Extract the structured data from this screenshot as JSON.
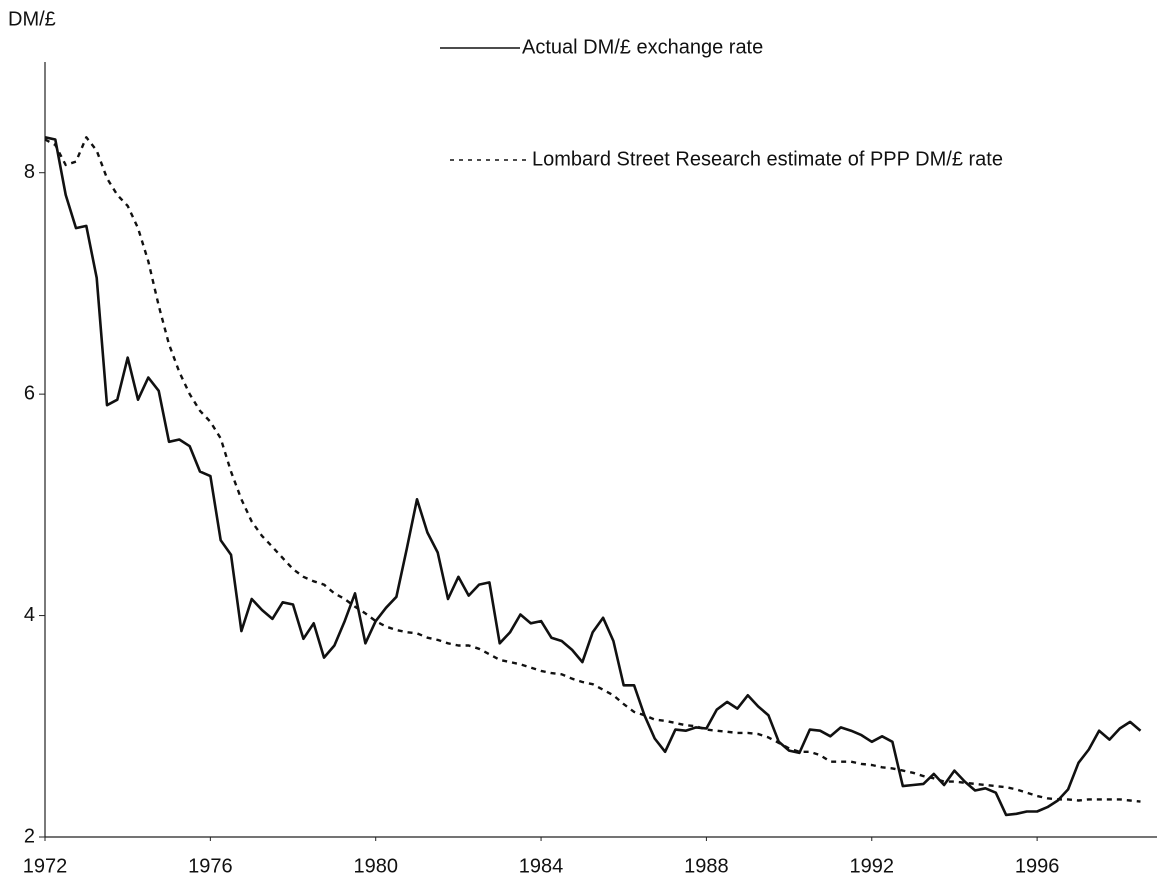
{
  "chart_data": {
    "type": "line",
    "y_label": "DM/£",
    "x": [
      1972,
      1972.25,
      1972.5,
      1972.75,
      1973,
      1973.25,
      1973.5,
      1973.75,
      1974,
      1974.25,
      1974.5,
      1974.75,
      1975,
      1975.25,
      1975.5,
      1975.75,
      1976,
      1976.25,
      1976.5,
      1976.75,
      1977,
      1977.25,
      1977.5,
      1977.75,
      1978,
      1978.25,
      1978.5,
      1978.75,
      1979,
      1979.25,
      1979.5,
      1979.75,
      1980,
      1980.25,
      1980.5,
      1980.75,
      1981,
      1981.25,
      1981.5,
      1981.75,
      1982,
      1982.25,
      1982.5,
      1982.75,
      1983,
      1983.25,
      1983.5,
      1983.75,
      1984,
      1984.25,
      1984.5,
      1984.75,
      1985,
      1985.25,
      1985.5,
      1985.75,
      1986,
      1986.25,
      1986.5,
      1986.75,
      1987,
      1987.25,
      1987.5,
      1987.75,
      1988,
      1988.25,
      1988.5,
      1988.75,
      1989,
      1989.25,
      1989.5,
      1989.75,
      1990,
      1990.25,
      1990.5,
      1990.75,
      1991,
      1991.25,
      1991.5,
      1991.75,
      1992,
      1992.25,
      1992.5,
      1992.75,
      1993,
      1993.25,
      1993.5,
      1993.75,
      1994,
      1994.25,
      1994.5,
      1994.75,
      1995,
      1995.25,
      1995.5,
      1995.75,
      1996,
      1996.25,
      1996.5,
      1996.75,
      1997,
      1997.25,
      1997.5,
      1997.75,
      1998,
      1998.25,
      1998.5
    ],
    "series": [
      {
        "name": "Actual DM/£ exchange rate",
        "color": "#111111",
        "linestyle": "solid",
        "values": [
          8.32,
          8.3,
          7.8,
          7.5,
          7.52,
          7.05,
          5.9,
          5.95,
          6.33,
          5.95,
          6.15,
          6.03,
          5.57,
          5.59,
          5.53,
          5.3,
          5.26,
          4.68,
          4.55,
          3.86,
          4.15,
          4.05,
          3.97,
          4.12,
          4.1,
          3.79,
          3.93,
          3.62,
          3.73,
          3.95,
          4.2,
          3.75,
          3.95,
          4.07,
          4.17,
          4.6,
          5.05,
          4.75,
          4.57,
          4.15,
          4.35,
          4.18,
          4.28,
          4.3,
          3.75,
          3.85,
          4.01,
          3.93,
          3.95,
          3.8,
          3.77,
          3.69,
          3.58,
          3.85,
          3.98,
          3.77,
          3.37,
          3.37,
          3.1,
          2.89,
          2.77,
          2.97,
          2.96,
          2.99,
          2.98,
          3.15,
          3.22,
          3.16,
          3.28,
          3.18,
          3.1,
          2.86,
          2.78,
          2.76,
          2.97,
          2.96,
          2.91,
          2.99,
          2.96,
          2.92,
          2.86,
          2.91,
          2.86,
          2.46,
          2.47,
          2.48,
          2.57,
          2.47,
          2.6,
          2.5,
          2.42,
          2.44,
          2.4,
          2.2,
          2.21,
          2.23,
          2.23,
          2.27,
          2.33,
          2.43,
          2.67,
          2.79,
          2.96,
          2.88,
          2.98,
          3.04,
          2.96
        ]
      },
      {
        "name": "Lombard Street Research estimate of PPP DM/£ rate",
        "color": "#111111",
        "linestyle": "dotted",
        "values": [
          8.3,
          8.25,
          8.07,
          8.1,
          8.32,
          8.2,
          7.95,
          7.8,
          7.7,
          7.5,
          7.2,
          6.8,
          6.45,
          6.2,
          6.0,
          5.85,
          5.75,
          5.6,
          5.3,
          5.05,
          4.85,
          4.72,
          4.62,
          4.52,
          4.42,
          4.35,
          4.31,
          4.28,
          4.2,
          4.15,
          4.08,
          4.02,
          3.95,
          3.9,
          3.87,
          3.85,
          3.84,
          3.8,
          3.78,
          3.75,
          3.73,
          3.73,
          3.7,
          3.65,
          3.6,
          3.58,
          3.56,
          3.53,
          3.5,
          3.48,
          3.47,
          3.43,
          3.4,
          3.38,
          3.33,
          3.28,
          3.2,
          3.13,
          3.1,
          3.06,
          3.05,
          3.03,
          3.01,
          3.0,
          2.97,
          2.96,
          2.95,
          2.94,
          2.94,
          2.93,
          2.9,
          2.85,
          2.8,
          2.77,
          2.77,
          2.74,
          2.68,
          2.68,
          2.68,
          2.66,
          2.65,
          2.63,
          2.62,
          2.6,
          2.58,
          2.55,
          2.53,
          2.5,
          2.5,
          2.49,
          2.48,
          2.47,
          2.46,
          2.45,
          2.43,
          2.4,
          2.37,
          2.35,
          2.34,
          2.34,
          2.33,
          2.34,
          2.34,
          2.34,
          2.34,
          2.33,
          2.32
        ]
      }
    ],
    "xlim": [
      1972,
      1998.9
    ],
    "xticks": [
      1972,
      1976,
      1980,
      1984,
      1988,
      1992,
      1996
    ],
    "ylim": [
      2,
      9
    ],
    "yticks": [
      2,
      4,
      6,
      8
    ],
    "grid": false,
    "legend": "top-right"
  }
}
